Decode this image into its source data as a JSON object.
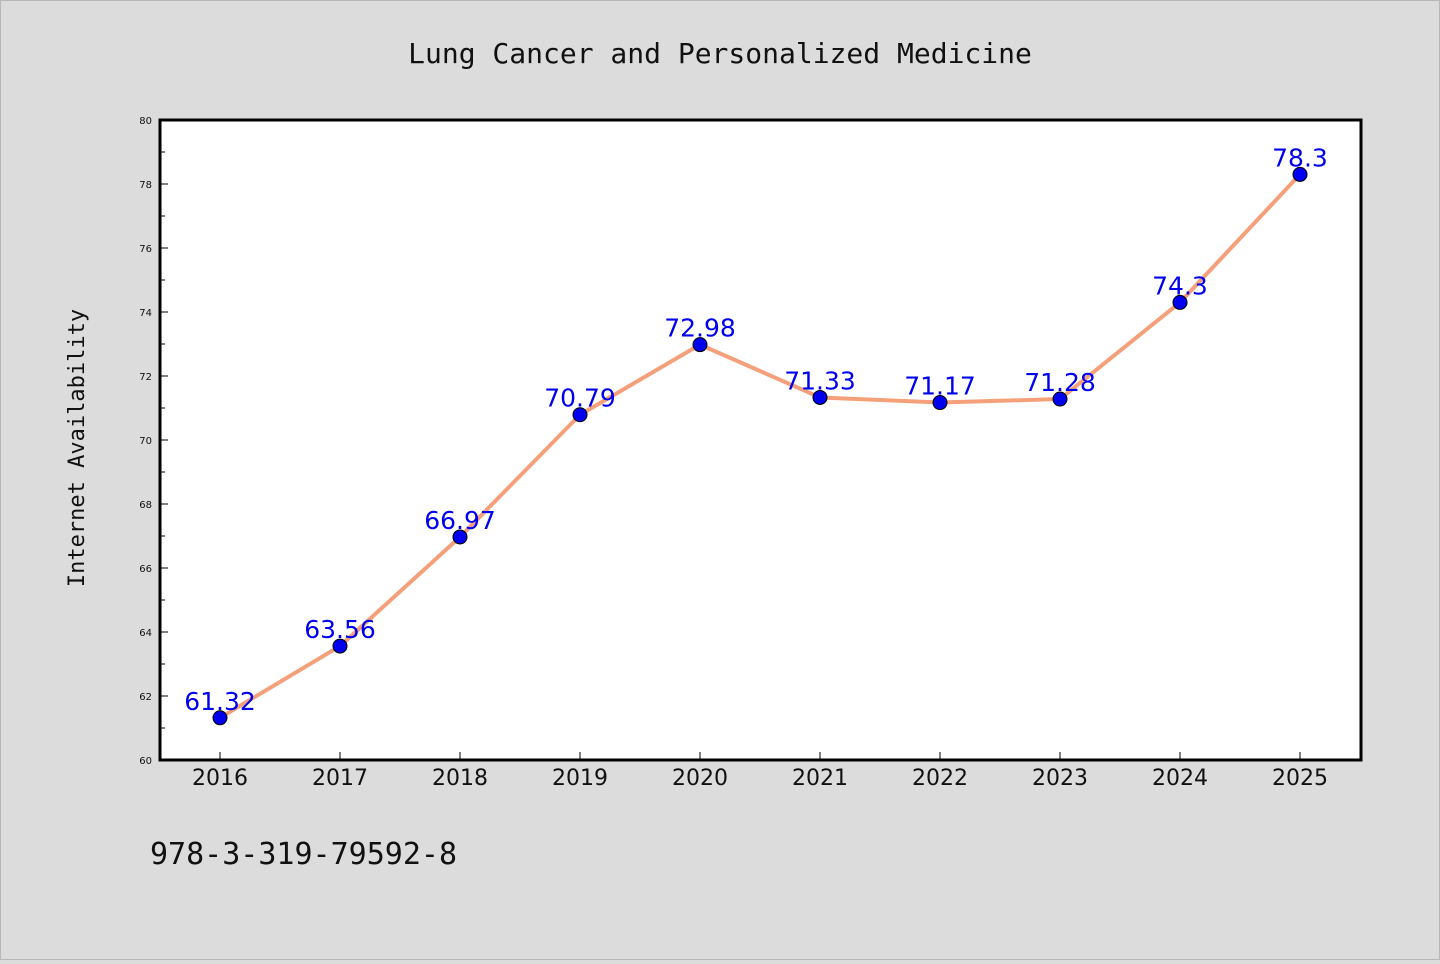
{
  "chart_data": {
    "type": "line",
    "title": "Lung Cancer and Personalized Medicine",
    "xlabel": "",
    "ylabel": "Internet Availability",
    "categories": [
      "2016",
      "2017",
      "2018",
      "2019",
      "2020",
      "2021",
      "2022",
      "2023",
      "2024",
      "2025"
    ],
    "series": [
      {
        "values": [
          61.32,
          63.56,
          66.97,
          70.79,
          72.98,
          71.33,
          71.17,
          71.28,
          74.3,
          78.3
        ],
        "labels": [
          "61.32",
          "63.56",
          "66.97",
          "70.79",
          "72.98",
          "71.33",
          "71.17",
          "71.28",
          "74.3",
          "78.3"
        ],
        "line_color": "#f4a07a",
        "marker_color": "#0000ee",
        "label_color": "#0000ee"
      }
    ],
    "ylim": [
      60,
      80
    ],
    "yticks": [
      "60",
      "62",
      "64",
      "66",
      "68",
      "70",
      "72",
      "74",
      "76",
      "78",
      "80"
    ],
    "grid": false,
    "legend": "none"
  },
  "footnote": "978-3-319-79592-8",
  "colors": {
    "background": "#dcdcdc",
    "plot_background": "#ffffff"
  }
}
